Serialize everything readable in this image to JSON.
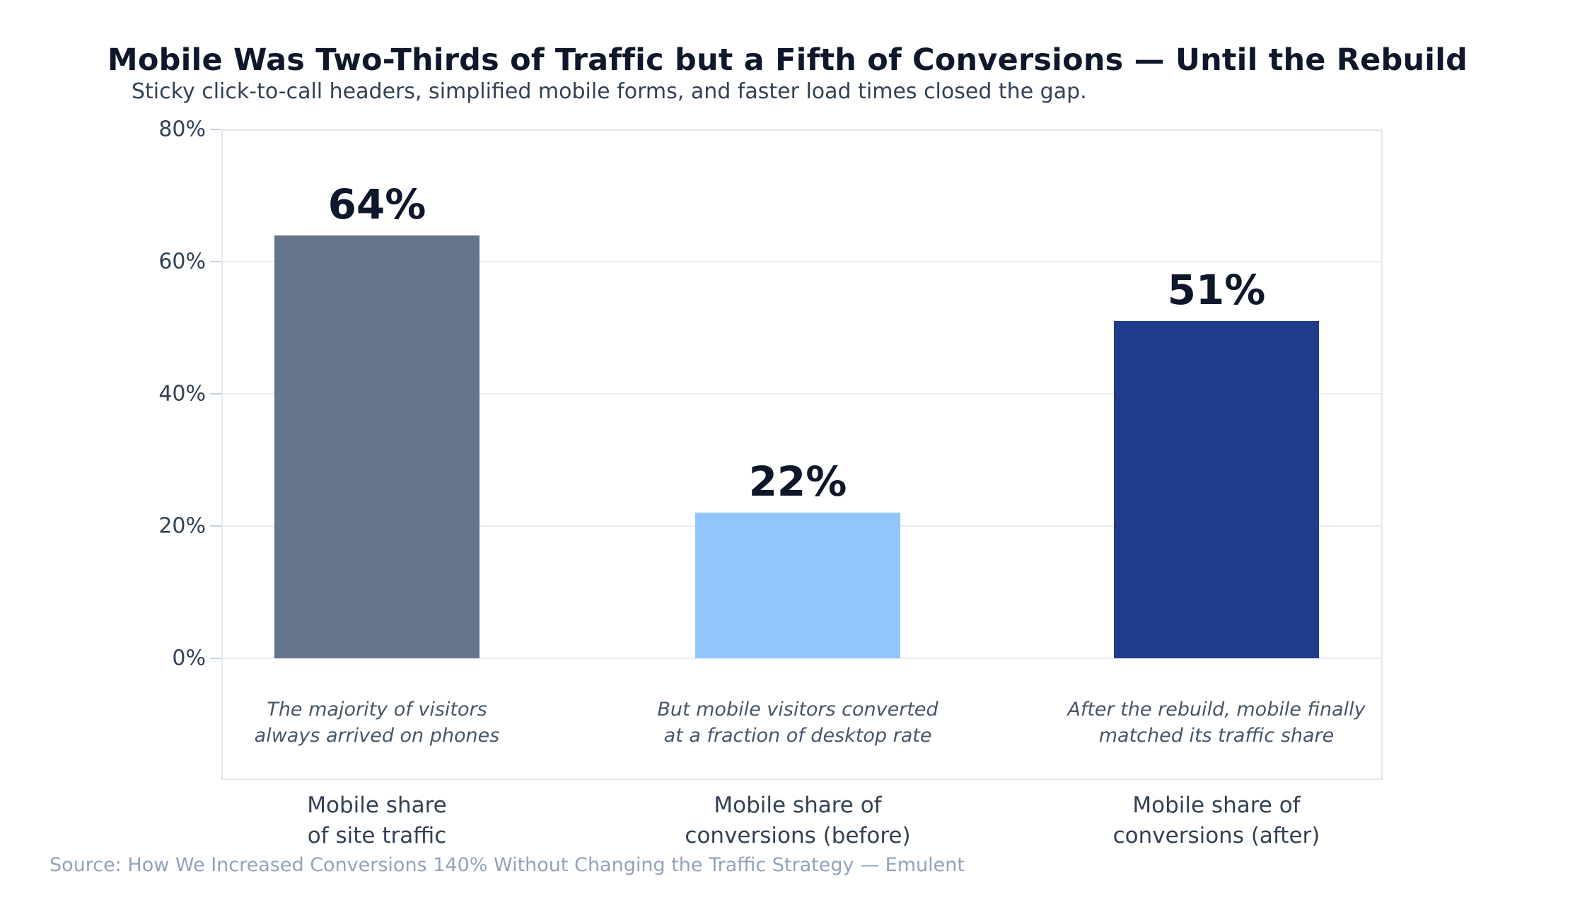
{
  "title": "Mobile Was Two-Thirds of Traffic but a Fifth of Conversions — Until the Rebuild",
  "subtitle": "Sticky click-to-call headers, simplified mobile forms, and faster load times closed the gap.",
  "source": "Source: How We Increased Conversions 140% Without Changing the Traffic Strategy — Emulent",
  "colors": {
    "background": "#ffffff",
    "title_text": "#0f172a",
    "subtitle_text": "#334155",
    "axis_text": "#334155",
    "annotation_text": "#475569",
    "source_text": "#94a3b8",
    "gridline": "#e9edf4",
    "frame_border": "#e2e8f0"
  },
  "chart_data": {
    "type": "bar",
    "title": "Mobile Was Two-Thirds of Traffic but a Fifth of Conversions — Until the Rebuild",
    "subtitle": "Sticky click-to-call headers, simplified mobile forms, and faster load times closed the gap.",
    "categories": [
      [
        "Mobile share",
        "of site traffic"
      ],
      [
        "Mobile share of",
        "conversions (before)"
      ],
      [
        "Mobile share of",
        "conversions (after)"
      ]
    ],
    "values": [
      64,
      22,
      51
    ],
    "value_labels": [
      "64%",
      "22%",
      "51%"
    ],
    "bar_colors": [
      "#64748b",
      "#93c5fd",
      "#1f3b8c"
    ],
    "annotations": [
      [
        "The majority of visitors",
        "always arrived on phones"
      ],
      [
        "But mobile visitors converted",
        "at a fraction of desktop rate"
      ],
      [
        "After the rebuild, mobile finally",
        "matched its traffic share"
      ]
    ],
    "xlabel": "",
    "ylabel": "",
    "ylim": [
      0,
      80
    ],
    "yticks": [
      0,
      20,
      40,
      60,
      80
    ],
    "ytick_labels": [
      "0%",
      "20%",
      "40%",
      "60%",
      "80%"
    ],
    "grid": true,
    "legend": false
  }
}
